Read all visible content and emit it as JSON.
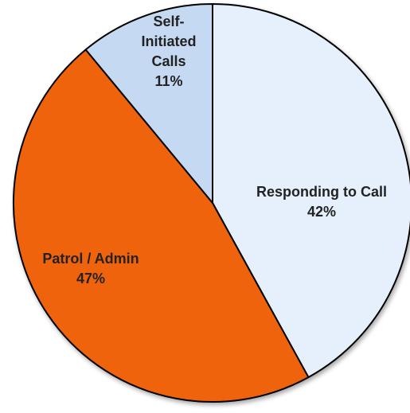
{
  "chart_data": {
    "type": "pie",
    "title": "",
    "categories": [
      "Responding to Call",
      "Patrol / Admin",
      "Self-Initiated Calls"
    ],
    "values": [
      42,
      47,
      11
    ],
    "unit": "%",
    "start_angle_deg": 0,
    "direction": "clockwise",
    "legend": "none",
    "slices": [
      {
        "label_lines": [
          "Responding to Call",
          "42%"
        ],
        "value": 42,
        "color": "#e6f0fc"
      },
      {
        "label_lines": [
          "Patrol / Admin",
          "47%"
        ],
        "value": 47,
        "color": "#f0640c"
      },
      {
        "label_lines": [
          "Self-",
          "Initiated",
          "Calls",
          "11%"
        ],
        "value": 11,
        "color": "#c6d9f2"
      }
    ]
  }
}
